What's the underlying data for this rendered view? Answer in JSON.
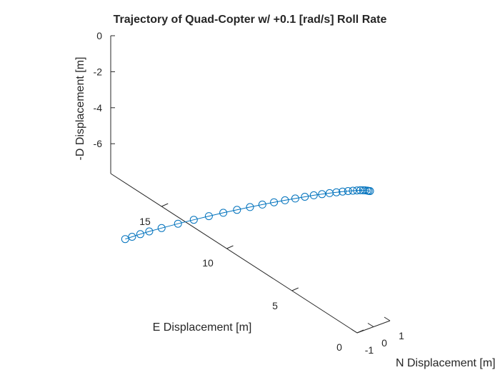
{
  "chart_data": {
    "type": "line",
    "title": "Trajectory of Quad-Copter w/ +0.1 [rad/s] Roll Rate",
    "xlabel": "N Displacement [m]",
    "ylabel": "E Displacement [m]",
    "zlabel": "-D Displacement [m]",
    "x_ticks": [
      "-1",
      "0",
      "1"
    ],
    "y_ticks": [
      "0",
      "5",
      "10",
      "15"
    ],
    "z_ticks": [
      "0",
      "-2",
      "-4",
      "-6"
    ],
    "xlim": [
      -1,
      1
    ],
    "ylim": [
      0,
      19
    ],
    "zlim": [
      -7.5,
      0
    ],
    "marker": "circle",
    "color": "#0072BD",
    "series": [
      {
        "E": [
          0.0,
          0.1,
          0.2,
          0.35,
          0.5,
          0.7,
          0.95,
          1.25,
          1.6,
          2.0,
          2.45,
          2.95,
          3.5,
          4.1,
          4.75,
          5.45,
          6.2,
          7.0,
          7.85,
          8.75,
          9.7,
          10.7,
          11.75,
          12.85,
          14.0,
          15.2,
          16.1,
          16.75,
          17.35,
          17.85
        ],
        "D_neg": [
          -7.48,
          -7.45,
          -7.42,
          -7.38,
          -7.35,
          -7.31,
          -7.28,
          -7.24,
          -7.2,
          -7.16,
          -7.12,
          -7.08,
          -7.04,
          -7.0,
          -6.97,
          -6.94,
          -6.91,
          -6.88,
          -6.86,
          -6.84,
          -6.83,
          -6.82,
          -6.82,
          -6.83,
          -6.85,
          -6.88,
          -6.91,
          -6.95,
          -6.99,
          -7.03
        ]
      }
    ]
  }
}
